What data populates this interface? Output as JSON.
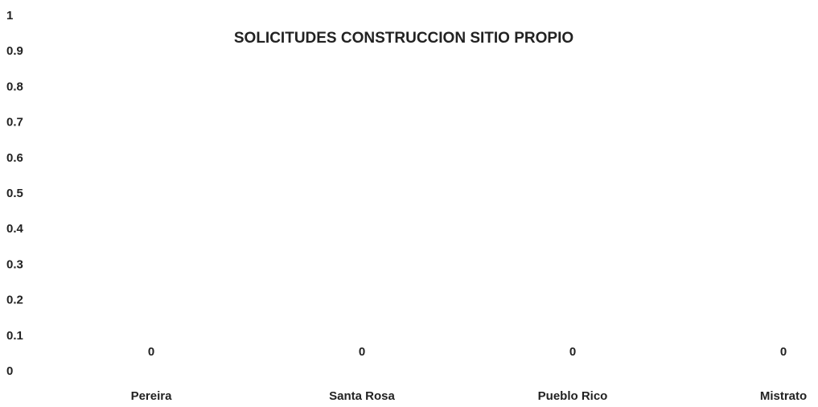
{
  "chart_data": {
    "type": "bar",
    "title": "SOLICITUDES  CONSTRUCCION SITIO PROPIO",
    "categories": [
      "Pereira",
      "Santa Rosa",
      "Pueblo Rico",
      "Mistrato"
    ],
    "values": [
      0,
      0,
      0,
      0
    ],
    "color": "#4f81bd",
    "ylim": [
      0,
      1
    ],
    "yticks": [
      0,
      0.1,
      0.2,
      0.3,
      0.4,
      0.5,
      0.6,
      0.7,
      0.8,
      0.9,
      1
    ],
    "grid": false
  }
}
